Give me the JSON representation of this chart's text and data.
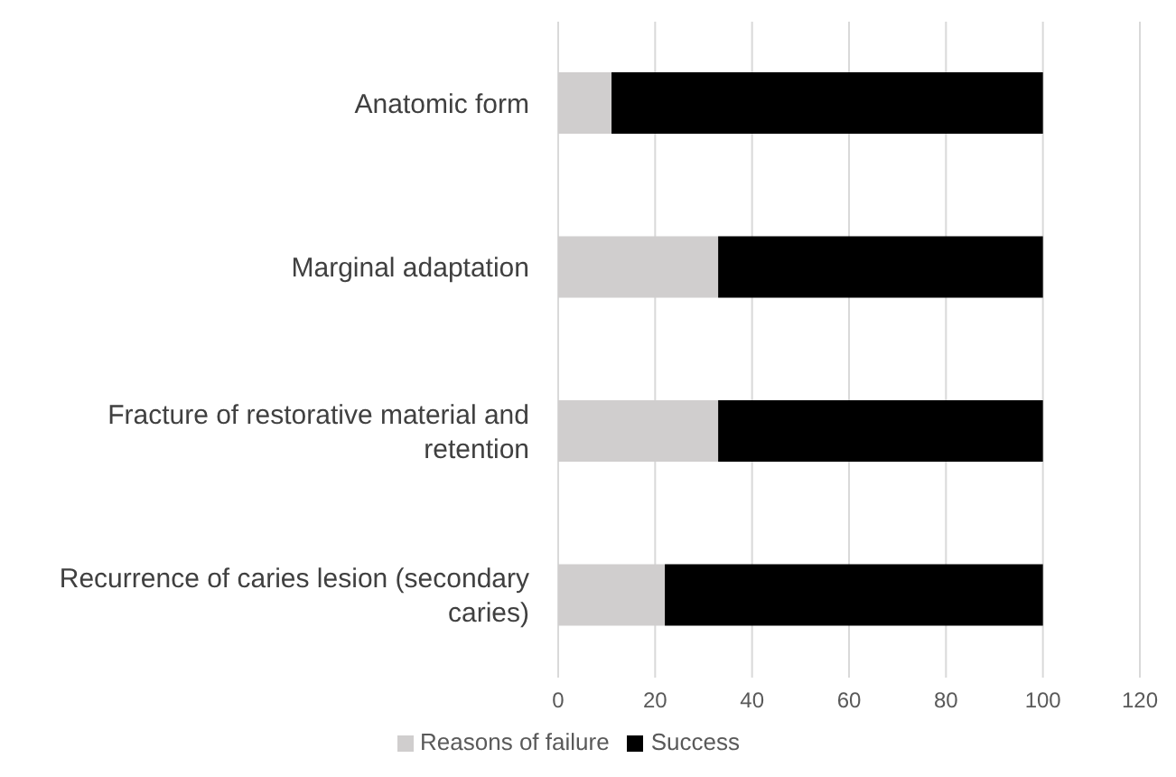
{
  "chart_data": {
    "type": "bar",
    "orientation": "horizontal",
    "stacked": true,
    "categories": [
      "Anatomic form",
      "Marginal adaptation",
      "Fracture of restorative material and retention",
      "Recurrence of caries lesion (secondary caries)"
    ],
    "series": [
      {
        "name": "Reasons of failure",
        "color": "#d0cece",
        "values": [
          11,
          33,
          33,
          22
        ]
      },
      {
        "name": "Success",
        "color": "#000000",
        "values": [
          89,
          67,
          67,
          78
        ]
      }
    ],
    "xlim": [
      0,
      120
    ],
    "xticks": [
      0,
      20,
      40,
      60,
      80,
      100,
      120
    ],
    "grid": "x",
    "legend": "bottom"
  }
}
